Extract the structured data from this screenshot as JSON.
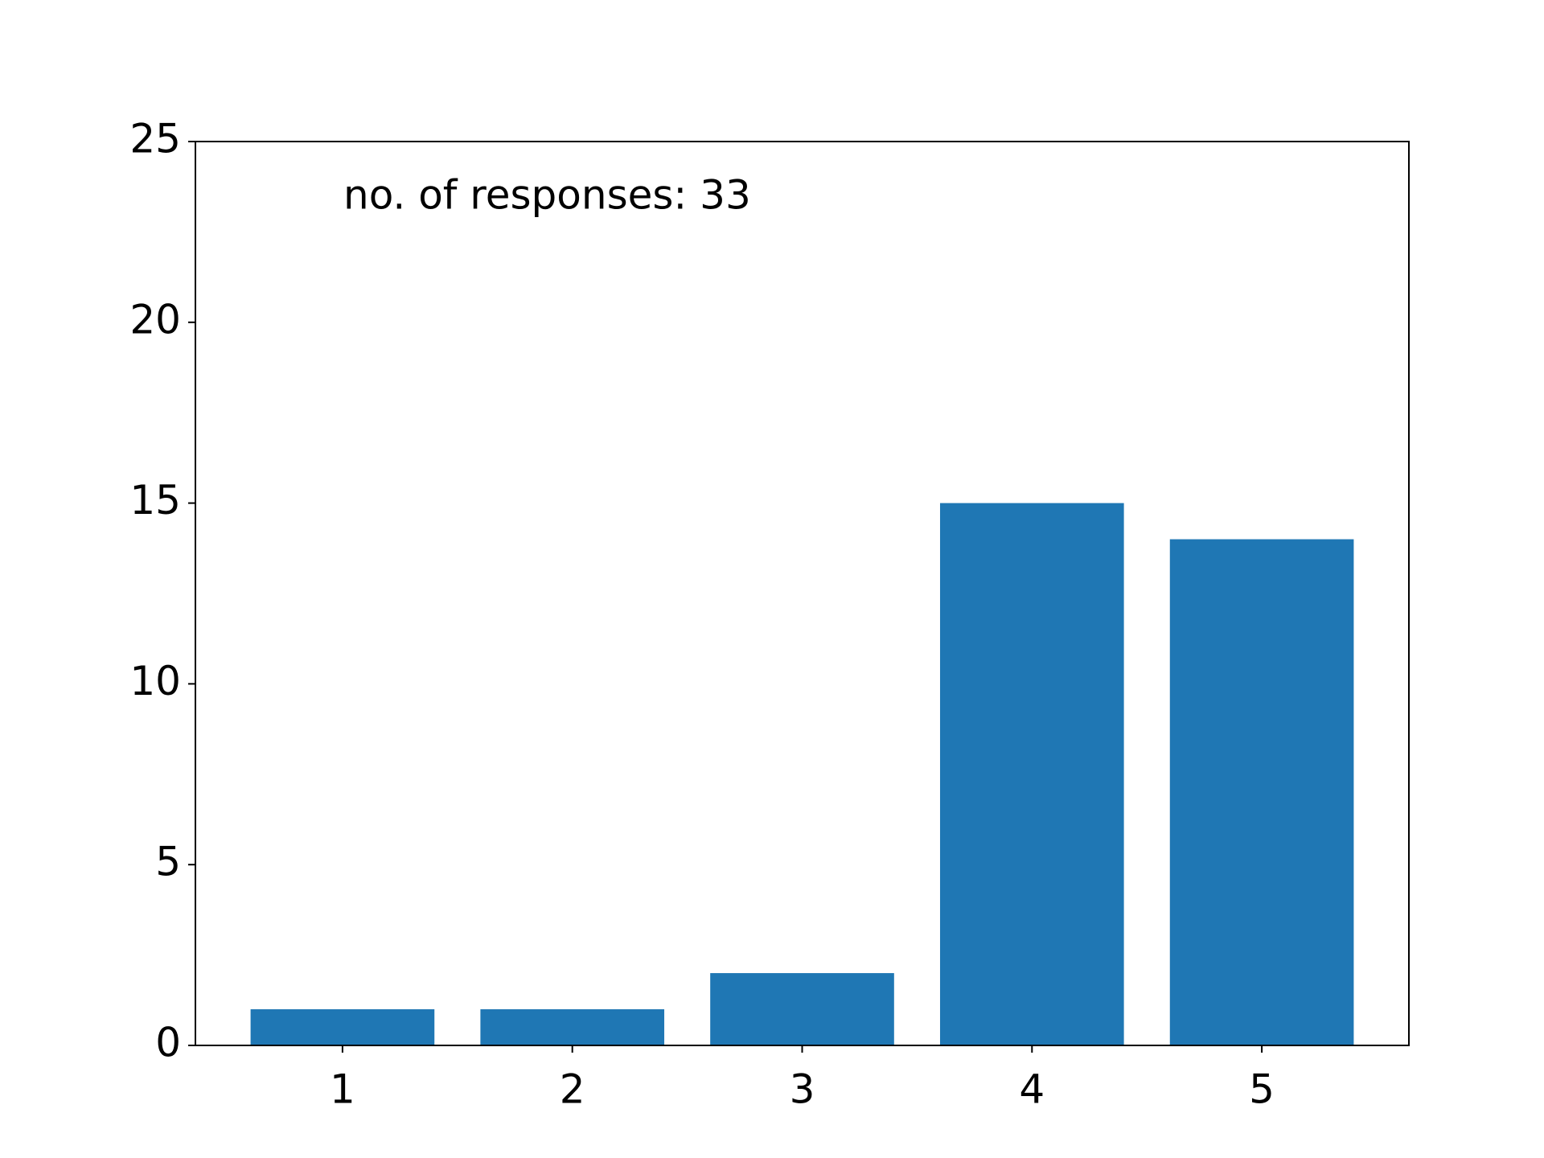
{
  "chart_data": {
    "type": "bar",
    "annotation": "no. of responses: 33",
    "x": [
      1,
      2,
      3,
      4,
      5
    ],
    "values": [
      1,
      1,
      2,
      15,
      14
    ],
    "color": "#1f77b4",
    "xlim": [
      0.36,
      5.64
    ],
    "xticks": [
      1,
      2,
      3,
      4,
      5
    ],
    "ylim": [
      0,
      25
    ],
    "yticks": [
      0,
      5,
      10,
      15,
      20,
      25
    ],
    "grid": false
  }
}
